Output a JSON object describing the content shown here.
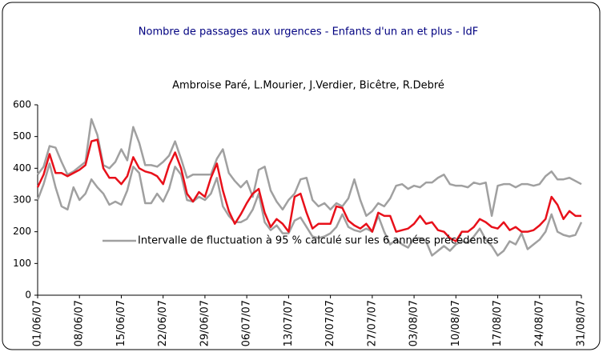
{
  "chart_data": {
    "type": "line",
    "title": "Nombre de passages aux urgences - Enfants d'un an et plus - IdF",
    "subtitle": "Ambroise Paré, L.Mourier, J.Verdier, Bicêtre, R.Debré",
    "categories": [
      "01/06/07",
      null,
      null,
      null,
      null,
      null,
      null,
      "08/06/07",
      null,
      null,
      null,
      null,
      null,
      null,
      "15/06/07",
      null,
      null,
      null,
      null,
      null,
      null,
      "22/06/07",
      null,
      null,
      null,
      null,
      null,
      null,
      "29/06/07",
      null,
      null,
      null,
      null,
      null,
      null,
      "06/07/07",
      null,
      null,
      null,
      null,
      null,
      null,
      "13/07/07",
      null,
      null,
      null,
      null,
      null,
      null,
      "20/07/07",
      null,
      null,
      null,
      null,
      null,
      null,
      "27/07/07",
      null,
      null,
      null,
      null,
      null,
      null,
      "03/08/07",
      null,
      null,
      null,
      null,
      null,
      null,
      "10/08/07",
      null,
      null,
      null,
      null,
      null,
      null,
      "17/08/07",
      null,
      null,
      null,
      null,
      null,
      null,
      "24/08/07",
      null,
      null,
      null,
      null,
      null,
      null,
      "31/08/07"
    ],
    "series": [
      {
        "name": "Intervalle de fluctuation à 95 % calculé sur les 6 années précédentes",
        "color": "#a0a0a0",
        "values": [
          380,
          405,
          470,
          465,
          420,
          380,
          390,
          405,
          420,
          555,
          505,
          410,
          400,
          420,
          460,
          425,
          530,
          480,
          410,
          410,
          405,
          420,
          440,
          485,
          430,
          370,
          380,
          380,
          380,
          380,
          430,
          460,
          385,
          360,
          340,
          360,
          310,
          395,
          405,
          330,
          295,
          270,
          300,
          320,
          365,
          370,
          300,
          280,
          290,
          270,
          290,
          280,
          305,
          365,
          300,
          250,
          265,
          290,
          280,
          305,
          345,
          350,
          335,
          345,
          340,
          355,
          355,
          370,
          380,
          350,
          345,
          345,
          340,
          355,
          350,
          355,
          250,
          345,
          350,
          350,
          340,
          350,
          350,
          345,
          350,
          375,
          390,
          365,
          365,
          370,
          360,
          350
        ]
      },
      {
        "color": "#a0a0a0",
        "values": [
          300,
          350,
          415,
          340,
          280,
          270,
          340,
          300,
          320,
          365,
          340,
          320,
          285,
          295,
          285,
          330,
          405,
          385,
          290,
          290,
          320,
          295,
          335,
          405,
          380,
          300,
          295,
          310,
          300,
          320,
          370,
          280,
          250,
          230,
          230,
          240,
          270,
          320,
          230,
          205,
          220,
          195,
          195,
          235,
          245,
          215,
          185,
          180,
          185,
          195,
          215,
          255,
          215,
          205,
          200,
          210,
          200,
          250,
          200,
          160,
          175,
          160,
          150,
          180,
          180,
          170,
          125,
          140,
          155,
          140,
          160,
          170,
          165,
          185,
          210,
          175,
          155,
          125,
          140,
          170,
          160,
          195,
          145,
          160,
          175,
          200,
          255,
          200,
          190,
          185,
          190,
          230
        ]
      },
      {
        "color": "#e8101a",
        "values": [
          340,
          380,
          445,
          385,
          385,
          375,
          385,
          395,
          410,
          485,
          490,
          400,
          370,
          370,
          350,
          375,
          435,
          400,
          390,
          385,
          375,
          350,
          410,
          450,
          400,
          320,
          295,
          325,
          310,
          370,
          415,
          330,
          265,
          225,
          255,
          290,
          320,
          335,
          260,
          215,
          240,
          225,
          200,
          310,
          320,
          260,
          210,
          225,
          225,
          225,
          280,
          275,
          235,
          220,
          210,
          225,
          200,
          260,
          250,
          250,
          200,
          205,
          210,
          225,
          250,
          225,
          230,
          205,
          200,
          180,
          170,
          200,
          200,
          215,
          240,
          230,
          215,
          210,
          230,
          205,
          215,
          200,
          200,
          205,
          220,
          240,
          310,
          285,
          240,
          265,
          250,
          250
        ]
      }
    ],
    "ylim": [
      0,
      600
    ],
    "yticks": [
      0,
      100,
      200,
      300,
      400,
      500,
      600
    ],
    "legend": "lower center",
    "title_color": "#000080"
  }
}
